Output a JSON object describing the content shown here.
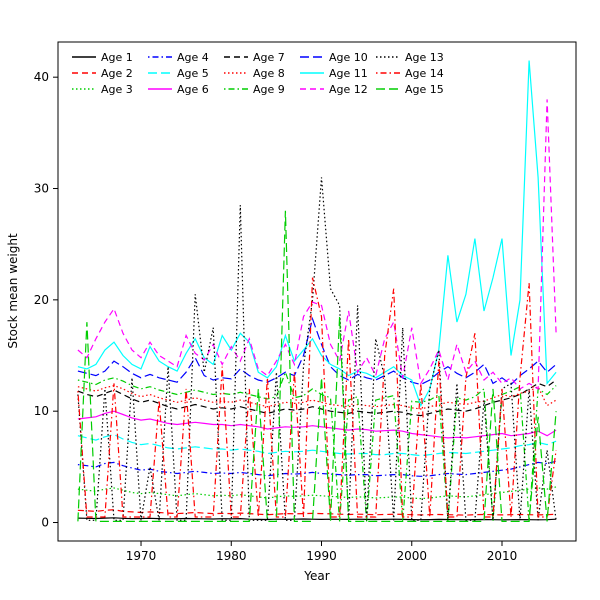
{
  "chart_data": {
    "type": "line",
    "title": "",
    "xlabel": "Year",
    "ylabel": "Stock mean weight",
    "xlim": [
      1963,
      2016
    ],
    "ylim": [
      0,
      41.5
    ],
    "x_ticks": [
      1970,
      1980,
      1990,
      2000,
      2010
    ],
    "y_ticks": [
      0,
      10,
      20,
      30,
      40
    ],
    "legend_position": "top",
    "legend_ncol": 5,
    "grid": false,
    "x": [
      1963,
      1964,
      1965,
      1966,
      1967,
      1968,
      1969,
      1970,
      1971,
      1972,
      1973,
      1974,
      1975,
      1976,
      1977,
      1978,
      1979,
      1980,
      1981,
      1982,
      1983,
      1984,
      1985,
      1986,
      1987,
      1988,
      1989,
      1990,
      1991,
      1992,
      1993,
      1994,
      1995,
      1996,
      1997,
      1998,
      1999,
      2000,
      2001,
      2002,
      2003,
      2004,
      2005,
      2006,
      2007,
      2008,
      2009,
      2010,
      2011,
      2012,
      2013,
      2014,
      2015,
      2016
    ],
    "series": [
      {
        "name": "Age 1",
        "color": "#000000",
        "linetype": "solid",
        "values": [
          0.4,
          0.38,
          0.36,
          0.4,
          0.42,
          0.38,
          0.35,
          0.36,
          0.38,
          0.35,
          0.33,
          0.34,
          0.36,
          0.35,
          0.33,
          0.32,
          0.34,
          0.33,
          0.35,
          0.3,
          0.28,
          0.27,
          0.3,
          0.28,
          0.3,
          0.32,
          0.3,
          0.28,
          0.3,
          0.29,
          0.28,
          0.3,
          0.28,
          0.27,
          0.28,
          0.3,
          0.28,
          0.26,
          0.25,
          0.26,
          0.28,
          0.27,
          0.26,
          0.25,
          0.26,
          0.27,
          0.25,
          0.24,
          0.25,
          0.26,
          0.25,
          0.24,
          0.25,
          0.3
        ]
      },
      {
        "name": "Age 2",
        "color": "#FF0000",
        "linetype": "dashed",
        "values": [
          1.1,
          1.05,
          1.0,
          1.1,
          1.15,
          1.0,
          0.95,
          0.9,
          0.95,
          0.9,
          0.85,
          0.8,
          0.85,
          0.9,
          0.85,
          0.8,
          0.82,
          0.8,
          0.85,
          0.8,
          0.75,
          0.7,
          0.75,
          0.8,
          0.78,
          0.8,
          0.82,
          0.8,
          0.78,
          0.75,
          0.72,
          0.75,
          0.73,
          0.7,
          0.72,
          0.75,
          0.73,
          0.7,
          0.68,
          0.7,
          0.72,
          0.7,
          0.68,
          0.67,
          0.7,
          0.72,
          0.7,
          0.68,
          0.7,
          0.72,
          0.7,
          0.68,
          0.7,
          0.75
        ]
      },
      {
        "name": "Age 3",
        "color": "#00CD00",
        "linetype": "dotted",
        "values": [
          3.0,
          2.9,
          2.8,
          3.0,
          3.1,
          2.9,
          2.7,
          2.6,
          2.7,
          2.6,
          2.5,
          2.4,
          2.5,
          2.6,
          2.5,
          2.4,
          2.45,
          2.4,
          2.5,
          2.4,
          2.3,
          2.2,
          2.3,
          2.4,
          2.35,
          2.4,
          2.45,
          2.4,
          2.35,
          2.3,
          2.25,
          2.3,
          2.28,
          2.2,
          2.25,
          2.3,
          2.28,
          2.2,
          2.15,
          2.2,
          2.3,
          2.4,
          2.35,
          2.3,
          2.4,
          2.5,
          2.6,
          2.7,
          2.8,
          2.9,
          3.0,
          3.1,
          3.0,
          3.2
        ]
      },
      {
        "name": "Age 4",
        "color": "#0000FF",
        "linetype": "dotdash",
        "values": [
          5.2,
          5.1,
          5.0,
          5.3,
          5.4,
          5.1,
          4.9,
          4.7,
          4.8,
          4.6,
          4.5,
          4.4,
          4.5,
          4.6,
          4.5,
          4.4,
          4.45,
          4.4,
          4.5,
          4.4,
          4.3,
          4.2,
          4.3,
          4.4,
          4.35,
          4.4,
          4.5,
          4.4,
          4.35,
          4.3,
          4.25,
          4.3,
          4.3,
          4.2,
          4.25,
          4.3,
          4.3,
          4.2,
          4.15,
          4.2,
          4.3,
          4.4,
          4.35,
          4.3,
          4.4,
          4.5,
          4.6,
          4.7,
          4.8,
          5.0,
          5.2,
          5.4,
          5.3,
          5.5
        ]
      },
      {
        "name": "Age 5",
        "color": "#00FFFF",
        "linetype": "longdash",
        "values": [
          7.8,
          7.6,
          7.4,
          7.7,
          7.9,
          7.5,
          7.2,
          7.0,
          7.1,
          6.9,
          6.7,
          6.6,
          6.7,
          6.8,
          6.7,
          6.6,
          6.6,
          6.5,
          6.6,
          6.5,
          6.4,
          6.2,
          6.3,
          6.4,
          6.35,
          6.4,
          6.5,
          6.4,
          6.3,
          6.2,
          6.15,
          6.2,
          6.2,
          6.1,
          6.1,
          6.2,
          6.2,
          6.1,
          6.0,
          6.1,
          6.2,
          6.3,
          6.25,
          6.2,
          6.3,
          6.4,
          6.5,
          6.6,
          6.7,
          6.9,
          7.0,
          7.2,
          7.0,
          7.3
        ]
      },
      {
        "name": "Age 6",
        "color": "#FF00FF",
        "linetype": "solid",
        "values": [
          9.3,
          9.4,
          9.5,
          9.8,
          10.0,
          9.7,
          9.4,
          9.2,
          9.3,
          9.1,
          8.9,
          8.8,
          8.9,
          9.0,
          8.9,
          8.8,
          8.8,
          8.7,
          8.8,
          8.7,
          8.6,
          8.4,
          8.5,
          8.6,
          8.55,
          8.6,
          8.7,
          8.6,
          8.5,
          8.4,
          8.3,
          8.4,
          8.35,
          8.2,
          8.25,
          8.3,
          8.2,
          8.0,
          7.9,
          7.8,
          7.7,
          7.6,
          7.65,
          7.6,
          7.7,
          7.8,
          7.9,
          8.0,
          7.8,
          7.9,
          8.0,
          8.2,
          7.8,
          8.3
        ]
      },
      {
        "name": "Age 7",
        "color": "#000000",
        "linetype": "dashed",
        "values": [
          11.8,
          11.5,
          11.3,
          11.6,
          11.9,
          11.5,
          11.1,
          10.8,
          11.0,
          10.7,
          10.4,
          10.2,
          10.4,
          10.6,
          10.4,
          10.2,
          10.3,
          10.2,
          10.4,
          10.2,
          10.0,
          9.8,
          10.0,
          10.2,
          10.1,
          10.2,
          10.4,
          10.2,
          10.0,
          9.9,
          9.8,
          10.0,
          9.9,
          9.8,
          9.9,
          10.0,
          9.9,
          9.7,
          9.6,
          9.8,
          10.0,
          10.2,
          10.1,
          10.0,
          10.2,
          10.5,
          10.8,
          11.0,
          11.2,
          11.5,
          12.0,
          12.5,
          12.2,
          12.8
        ]
      },
      {
        "name": "Age 8",
        "color": "#FF0000",
        "linetype": "dotted",
        "values": [
          12.2,
          12.0,
          11.8,
          12.1,
          12.3,
          12.0,
          11.6,
          11.3,
          11.5,
          11.2,
          11.0,
          10.8,
          11.0,
          11.2,
          11.0,
          10.8,
          10.9,
          10.8,
          11.0,
          10.8,
          10.6,
          10.4,
          10.6,
          10.8,
          10.7,
          10.8,
          11.0,
          10.8,
          10.6,
          10.5,
          10.4,
          10.6,
          10.5,
          10.4,
          10.5,
          10.6,
          10.5,
          10.3,
          10.2,
          10.4,
          10.6,
          10.8,
          10.7,
          10.6,
          10.8,
          10.9,
          11.2,
          11.5,
          11.3,
          11.6,
          11.8,
          12.2,
          10.5,
          11.0
        ]
      },
      {
        "name": "Age 9",
        "color": "#00CD00",
        "linetype": "dotdash",
        "values": [
          12.8,
          12.6,
          12.4,
          12.8,
          13.0,
          12.7,
          12.3,
          12.0,
          12.2,
          11.9,
          11.7,
          11.5,
          11.7,
          11.9,
          11.7,
          11.5,
          11.6,
          11.5,
          11.7,
          11.5,
          11.3,
          11.1,
          11.3,
          13.5,
          11.2,
          11.4,
          12.0,
          11.5,
          11.2,
          0.1,
          11.0,
          11.3,
          0.1,
          11.0,
          11.2,
          11.4,
          0.1,
          10.9,
          10.8,
          11.0,
          11.5,
          0.1,
          11.2,
          11.0,
          11.3,
          12.0,
          0.1,
          11.5,
          11.8,
          12.2,
          0.1,
          12.0,
          11.5,
          12.3
        ]
      },
      {
        "name": "Age 10",
        "color": "#0000FF",
        "linetype": "longdash",
        "values": [
          13.6,
          13.4,
          13.2,
          13.6,
          14.5,
          14.0,
          13.4,
          13.0,
          13.3,
          13.0,
          12.8,
          12.6,
          13.5,
          14.8,
          13.2,
          12.8,
          13.0,
          12.9,
          13.8,
          13.2,
          12.8,
          12.6,
          13.0,
          13.5,
          13.2,
          15.0,
          18.3,
          16.0,
          14.0,
          13.2,
          12.8,
          13.3,
          13.0,
          12.8,
          13.2,
          13.6,
          13.0,
          12.6,
          12.4,
          12.8,
          13.5,
          14.0,
          13.4,
          13.0,
          13.5,
          14.2,
          12.5,
          13.0,
          12.4,
          13.2,
          13.8,
          14.5,
          13.5,
          14.2
        ]
      },
      {
        "name": "Age 11",
        "color": "#00FFFF",
        "linetype": "solid",
        "values": [
          14.0,
          13.8,
          14.2,
          15.5,
          16.2,
          15.0,
          14.2,
          13.8,
          15.8,
          14.5,
          14.0,
          13.6,
          15.2,
          16.5,
          14.8,
          14.2,
          16.8,
          15.5,
          17.0,
          16.2,
          13.5,
          13.0,
          14.0,
          16.8,
          14.5,
          15.5,
          16.5,
          15.0,
          14.2,
          13.8,
          13.2,
          13.6,
          13.4,
          13.0,
          13.5,
          14.0,
          13.2,
          12.8,
          10.5,
          12.0,
          15.5,
          24.0,
          18.0,
          20.5,
          25.5,
          19.0,
          22.0,
          25.5,
          15.0,
          20.0,
          41.5,
          31.0,
          12.5,
          13.5
        ]
      },
      {
        "name": "Age 12",
        "color": "#FF00FF",
        "linetype": "dashed",
        "values": [
          15.5,
          14.8,
          16.5,
          18.0,
          19.2,
          17.0,
          15.5,
          14.8,
          16.2,
          15.0,
          14.5,
          14.0,
          16.8,
          15.2,
          14.6,
          16.0,
          14.2,
          15.8,
          14.5,
          16.5,
          13.8,
          13.2,
          14.5,
          16.0,
          14.2,
          18.5,
          19.8,
          19.5,
          16.0,
          14.5,
          19.0,
          13.5,
          14.8,
          13.2,
          16.5,
          18.0,
          13.0,
          17.5,
          12.5,
          13.8,
          15.5,
          12.8,
          16.0,
          13.5,
          14.5,
          12.8,
          13.5,
          12.5,
          13.0,
          12.0,
          12.5,
          12.0,
          38.0,
          17.0
        ]
      },
      {
        "name": "Age 13",
        "color": "#000000",
        "linetype": "dotted",
        "values": [
          11.5,
          0.2,
          0.2,
          12.0,
          0.2,
          0.2,
          13.0,
          0.2,
          5.0,
          0.2,
          14.0,
          0.2,
          0.2,
          20.5,
          13.5,
          17.5,
          0.2,
          0.2,
          28.5,
          0.2,
          0.2,
          0.2,
          13.5,
          0.2,
          0.2,
          14.0,
          20.0,
          31.0,
          21.0,
          19.5,
          0.2,
          19.5,
          0.2,
          16.5,
          13.0,
          0.2,
          17.5,
          0.2,
          0.2,
          12.0,
          15.5,
          0.2,
          12.5,
          0.2,
          0.2,
          11.0,
          0.2,
          12.0,
          12.5,
          0.2,
          12.0,
          0.2,
          6.5,
          0.2
        ]
      },
      {
        "name": "Age 14",
        "color": "#FF0000",
        "linetype": "dotdash",
        "values": [
          11.8,
          0.5,
          0.5,
          0.5,
          12.5,
          0.5,
          0.5,
          0.5,
          0.5,
          11.0,
          0.5,
          0.5,
          12.0,
          0.5,
          0.5,
          0.5,
          14.0,
          0.5,
          0.5,
          12.0,
          0.5,
          13.0,
          0.5,
          0.5,
          13.5,
          0.5,
          22.0,
          18.5,
          0.5,
          0.5,
          16.5,
          0.5,
          0.5,
          0.5,
          15.0,
          21.0,
          0.5,
          0.5,
          12.5,
          0.5,
          14.5,
          0.5,
          0.5,
          13.0,
          17.0,
          0.5,
          0.5,
          12.0,
          0.5,
          13.0,
          21.5,
          0.5,
          0.5,
          6.5
        ]
      },
      {
        "name": "Age 15",
        "color": "#00CD00",
        "linetype": "longdash",
        "values": [
          0.1,
          18.0,
          0.1,
          0.1,
          0.1,
          0.1,
          0.1,
          0.1,
          0.1,
          0.1,
          0.1,
          0.1,
          0.1,
          0.1,
          0.1,
          0.1,
          0.1,
          0.1,
          0.1,
          0.1,
          12.0,
          0.1,
          0.1,
          28.0,
          0.1,
          0.1,
          0.1,
          13.0,
          0.1,
          18.5,
          0.1,
          0.1,
          0.1,
          0.1,
          0.1,
          0.1,
          0.1,
          0.1,
          0.1,
          0.1,
          0.1,
          0.1,
          0.1,
          0.1,
          0.1,
          0.1,
          12.0,
          0.1,
          0.1,
          0.1,
          0.1,
          9.5,
          0.1,
          10.0
        ]
      }
    ]
  }
}
